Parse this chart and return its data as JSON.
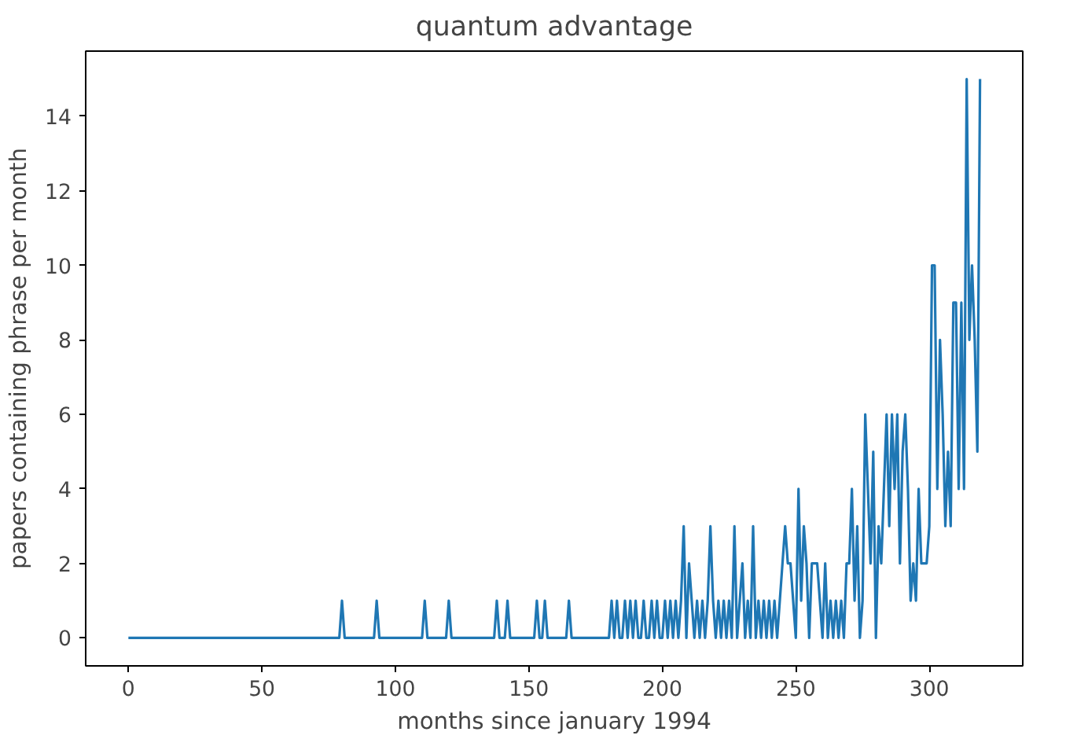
{
  "chart_data": {
    "type": "line",
    "title": "quantum advantage",
    "xlabel": "months since january 1994",
    "ylabel": "papers containing phrase per month",
    "x": [
      0,
      79,
      80,
      81,
      92,
      93,
      94,
      110,
      111,
      112,
      119,
      120,
      121,
      137,
      138,
      139,
      141,
      142,
      143,
      152,
      153,
      154,
      155,
      156,
      157,
      164,
      165,
      166,
      180,
      181,
      182,
      183,
      184,
      185,
      186,
      187,
      188,
      189,
      190,
      191,
      192,
      193,
      194,
      195,
      196,
      197,
      198,
      199,
      200,
      201,
      202,
      203,
      204,
      205,
      206,
      207,
      208,
      209,
      210,
      211,
      212,
      213,
      214,
      215,
      216,
      217,
      218,
      219,
      220,
      221,
      222,
      223,
      224,
      225,
      226,
      227,
      228,
      229,
      230,
      231,
      232,
      233,
      234,
      235,
      236,
      237,
      238,
      239,
      240,
      241,
      242,
      243,
      244,
      245,
      246,
      247,
      248,
      249,
      250,
      251,
      252,
      253,
      254,
      255,
      256,
      257,
      258,
      259,
      260,
      261,
      262,
      263,
      264,
      265,
      266,
      267,
      268,
      269,
      270,
      271,
      272,
      273,
      274,
      275,
      276,
      277,
      278,
      279,
      280,
      281,
      282,
      283,
      284,
      285,
      286,
      287,
      288,
      289,
      290,
      291,
      292,
      293,
      294,
      295,
      296,
      297,
      298,
      299,
      300,
      301,
      302,
      303,
      304,
      305,
      306,
      307,
      308,
      309,
      310,
      311,
      312,
      313,
      314,
      315,
      316,
      317,
      318,
      319
    ],
    "series": [
      {
        "color": "#1f77b4",
        "values": [
          0,
          0,
          1,
          0,
          0,
          1,
          0,
          0,
          1,
          0,
          0,
          1,
          0,
          0,
          1,
          0,
          0,
          1,
          0,
          0,
          1,
          0,
          0,
          1,
          0,
          0,
          1,
          0,
          0,
          1,
          0,
          1,
          0,
          0,
          1,
          0,
          1,
          0,
          1,
          0,
          0,
          1,
          0,
          0,
          1,
          0,
          1,
          0,
          0,
          1,
          0,
          1,
          0,
          1,
          0,
          1,
          3,
          0,
          2,
          1,
          0,
          1,
          0,
          1,
          0,
          1,
          3,
          1,
          0,
          1,
          0,
          1,
          0,
          1,
          0,
          3,
          0,
          1,
          2,
          0,
          1,
          0,
          3,
          0,
          1,
          0,
          1,
          0,
          1,
          0,
          1,
          0,
          1,
          2,
          3,
          2,
          2,
          1,
          0,
          4,
          1,
          3,
          2,
          0,
          2,
          2,
          2,
          1,
          0,
          2,
          0,
          1,
          0,
          1,
          0,
          1,
          0,
          2,
          2,
          4,
          1,
          3,
          0,
          1,
          6,
          4,
          2,
          5,
          0,
          3,
          2,
          4,
          6,
          3,
          6,
          4,
          6,
          2,
          5,
          6,
          4,
          1,
          2,
          1,
          4,
          2,
          2,
          2,
          3,
          10,
          10,
          4,
          8,
          6,
          3,
          5,
          3,
          9,
          9,
          4,
          9,
          4,
          15,
          8,
          10,
          8,
          5,
          15
        ]
      }
    ],
    "xlim": [
      -16,
      335
    ],
    "ylim": [
      -0.75,
      15.75
    ],
    "xticks": [
      0,
      50,
      100,
      150,
      200,
      250,
      300
    ],
    "yticks": [
      0,
      2,
      4,
      6,
      8,
      10,
      12,
      14
    ],
    "grid": false
  }
}
